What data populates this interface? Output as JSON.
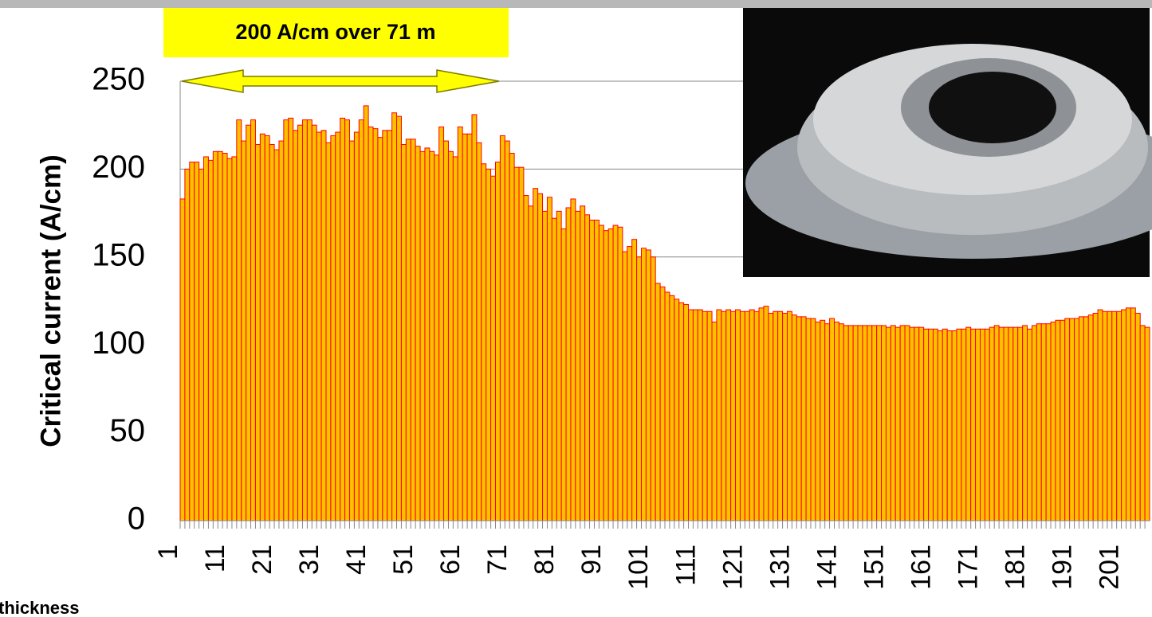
{
  "chart_data": {
    "type": "bar",
    "annotation": "200 A/cm over 71 m",
    "y_label": "Critical current (A/cm)",
    "footnote": "thickness",
    "color": "#ffc000",
    "edge_color": "#ff0000",
    "ylim": [
      0,
      250
    ],
    "yticks": [
      0,
      50,
      100,
      150,
      200,
      250
    ],
    "grid": true,
    "categories": [
      "1",
      null,
      null,
      null,
      null,
      null,
      null,
      null,
      null,
      null,
      "11",
      null,
      null,
      null,
      null,
      null,
      null,
      null,
      null,
      null,
      "21",
      null,
      null,
      null,
      null,
      null,
      null,
      null,
      null,
      null,
      "31",
      null,
      null,
      null,
      null,
      null,
      null,
      null,
      null,
      null,
      "41",
      null,
      null,
      null,
      null,
      null,
      null,
      null,
      null,
      null,
      "51",
      null,
      null,
      null,
      null,
      null,
      null,
      null,
      null,
      null,
      "61",
      null,
      null,
      null,
      null,
      null,
      null,
      null,
      null,
      null,
      "71",
      null,
      null,
      null,
      null,
      null,
      null,
      null,
      null,
      null,
      "81",
      null,
      null,
      null,
      null,
      null,
      null,
      null,
      null,
      null,
      "91",
      null,
      null,
      null,
      null,
      null,
      null,
      null,
      null,
      null,
      "101",
      null,
      null,
      null,
      null,
      null,
      null,
      null,
      null,
      null,
      "111",
      null,
      null,
      null,
      null,
      null,
      null,
      null,
      null,
      null,
      "121",
      null,
      null,
      null,
      null,
      null,
      null,
      null,
      null,
      null,
      "131",
      null,
      null,
      null,
      null,
      null,
      null,
      null,
      null,
      null,
      "141",
      null,
      null,
      null,
      null,
      null,
      null,
      null,
      null,
      null,
      "151",
      null,
      null,
      null,
      null,
      null,
      null,
      null,
      null,
      null,
      "161",
      null,
      null,
      null,
      null,
      null,
      null,
      null,
      null,
      null,
      "171",
      null,
      null,
      null,
      null,
      null,
      null,
      null,
      null,
      null,
      "181",
      null,
      null,
      null,
      null,
      null,
      null,
      null,
      null,
      null,
      "191",
      null,
      null,
      null,
      null,
      null,
      null,
      null,
      null,
      null,
      "201",
      null,
      null,
      null,
      null,
      null
    ],
    "values": [
      183,
      200,
      204,
      204,
      200,
      207,
      205,
      210,
      210,
      209,
      206,
      207,
      228,
      216,
      225,
      228,
      214,
      220,
      219,
      214,
      211,
      216,
      228,
      229,
      222,
      225,
      228,
      228,
      225,
      221,
      222,
      215,
      219,
      221,
      229,
      228,
      216,
      221,
      228,
      236,
      224,
      223,
      218,
      222,
      222,
      232,
      230,
      214,
      217,
      217,
      213,
      210,
      212,
      210,
      208,
      224,
      216,
      210,
      207,
      224,
      220,
      220,
      231,
      215,
      203,
      200,
      196,
      204,
      219,
      216,
      209,
      201,
      201,
      185,
      179,
      189,
      186,
      176,
      184,
      172,
      176,
      166,
      178,
      183,
      176,
      179,
      174,
      171,
      171,
      168,
      165,
      166,
      168,
      167,
      153,
      156,
      160,
      150,
      155,
      154,
      150,
      135,
      133,
      130,
      128,
      126,
      124,
      123,
      120,
      120,
      120,
      119,
      119,
      113,
      120,
      119,
      120,
      119,
      120,
      119,
      119,
      120,
      119,
      121,
      122,
      118,
      119,
      119,
      118,
      119,
      117,
      116,
      116,
      115,
      115,
      113,
      114,
      112,
      115,
      113,
      112,
      111,
      111,
      111,
      111,
      111,
      111,
      111,
      111,
      111,
      110,
      111,
      110,
      111,
      111,
      110,
      110,
      110,
      109,
      109,
      109,
      108,
      109,
      108,
      108,
      109,
      109,
      110,
      109,
      109,
      109,
      109,
      110,
      111,
      110,
      110,
      110,
      110,
      110,
      111,
      109,
      111,
      112,
      112,
      112,
      113,
      114,
      114,
      115,
      115,
      115,
      116,
      116,
      117,
      118,
      120,
      119,
      119,
      119,
      119,
      120,
      121,
      121,
      118,
      111,
      110
    ]
  }
}
